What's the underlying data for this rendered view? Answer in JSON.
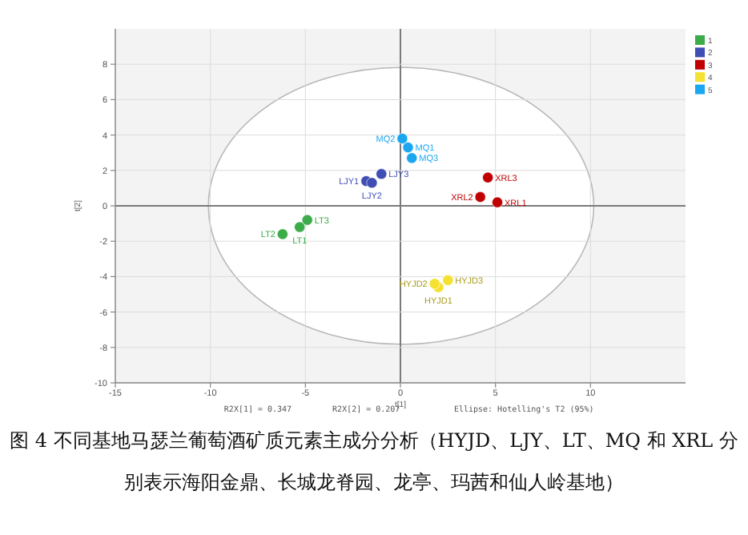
{
  "chart_data": {
    "type": "scatter",
    "xlabel": "t[1]",
    "ylabel": "t[2]",
    "xlim": [
      -15,
      15
    ],
    "ylim": [
      -10,
      10
    ],
    "xticks": [
      -15,
      -10,
      -5,
      0,
      5,
      10
    ],
    "yticks": [
      -10,
      -8,
      -6,
      -4,
      -2,
      0,
      2,
      4,
      6,
      8
    ],
    "grid": true,
    "legend": "top right",
    "marker": "circle",
    "series": [
      {
        "name": "1",
        "color": "#3cab4a",
        "x": [
          -5.3,
          -6.2,
          -4.9
        ],
        "values": [
          -1.2,
          -1.6,
          -0.8
        ]
      },
      {
        "name": "2",
        "color": "#3f4db5",
        "x": [
          -1.8,
          -1.5,
          -1.0
        ],
        "values": [
          1.4,
          1.3,
          1.8
        ]
      },
      {
        "name": "3",
        "color": "#c00000",
        "x": [
          5.1,
          4.2,
          4.6
        ],
        "values": [
          0.2,
          0.5,
          1.6
        ]
      },
      {
        "name": "4",
        "color": "#f5e12f",
        "x": [
          2.0,
          1.8,
          2.5
        ],
        "values": [
          -4.6,
          -4.4,
          -4.2
        ]
      },
      {
        "name": "5",
        "color": "#1aa7f0",
        "x": [
          0.4,
          0.1,
          0.6
        ],
        "values": [
          3.3,
          3.8,
          2.7
        ]
      }
    ],
    "annotations": [
      {
        "text": "LT1",
        "x": -5.3,
        "y": -1.2
      },
      {
        "text": "LT2",
        "x": -6.2,
        "y": -1.6
      },
      {
        "text": "LT3",
        "x": -4.9,
        "y": -0.8
      },
      {
        "text": "LJY1",
        "x": -1.8,
        "y": 1.4
      },
      {
        "text": "LJY2",
        "x": -1.5,
        "y": 1.3
      },
      {
        "text": "LJY3",
        "x": -1.0,
        "y": 1.8
      },
      {
        "text": "XRL1",
        "x": 5.1,
        "y": 0.2
      },
      {
        "text": "XRL2",
        "x": 4.2,
        "y": 0.5
      },
      {
        "text": "XRL3",
        "x": 4.6,
        "y": 1.6
      },
      {
        "text": "HYJD1",
        "x": 2.0,
        "y": -4.6
      },
      {
        "text": "HYJD2",
        "x": 1.8,
        "y": -4.4
      },
      {
        "text": "HYJD3",
        "x": 2.5,
        "y": -4.2
      },
      {
        "text": "MQ1",
        "x": 0.4,
        "y": 3.3
      },
      {
        "text": "MQ2",
        "x": 0.1,
        "y": 3.8
      },
      {
        "text": "MQ3",
        "x": 0.6,
        "y": 2.7
      },
      "R2X[1] = 0.347",
      "R2X[2] = 0.207",
      "Ellipse: Hotelling's T2 (95%)",
      "图 4 不同基地马瑟兰葡萄酒矿质元素主成分分析（HYJD、LJY、LT、MQ 和 XRL 分别表示海阳金鼎、长城龙脊园、龙亭、玛茜和仙人岭基地）"
    ]
  }
}
